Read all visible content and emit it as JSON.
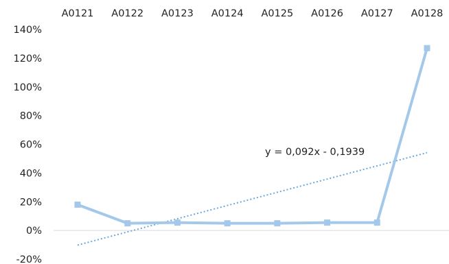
{
  "chart_data": {
    "type": "line",
    "title": "",
    "xlabel": "",
    "ylabel": "",
    "categories": [
      "A0121",
      "A0122",
      "A0123",
      "A0124",
      "A0125",
      "A0126",
      "A0127",
      "A0128"
    ],
    "series": [
      {
        "values": [
          0.18,
          0.05,
          0.055,
          0.05,
          0.05,
          0.055,
          0.055,
          1.27
        ],
        "color": "#a4c8ea",
        "marker": "square"
      }
    ],
    "trendline": {
      "type": "linear",
      "slope": 0.092,
      "intercept": -0.1939,
      "equation_label": "y = 0,092x - 0,1939",
      "color": "#6aa6dc",
      "style": "dotted"
    },
    "ylim": [
      -0.2,
      1.4
    ],
    "yticks": [
      -0.2,
      0,
      0.2,
      0.4,
      0.6,
      0.8,
      1.0,
      1.2,
      1.4
    ],
    "ytick_labels": [
      "-20%",
      "0%",
      "20%",
      "40%",
      "60%",
      "80%",
      "100%",
      "120%",
      "140%"
    ],
    "category_axis_position": "top",
    "grid": false,
    "legend": "none"
  }
}
